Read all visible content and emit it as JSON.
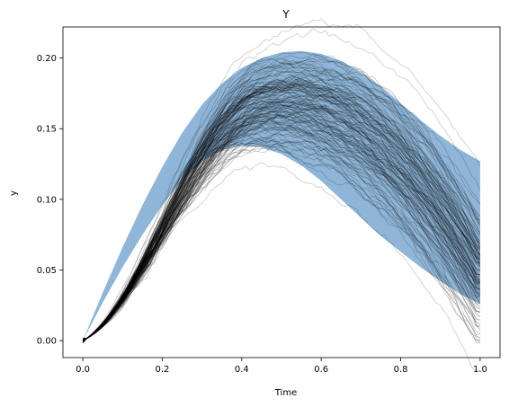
{
  "chart_data": {
    "type": "line",
    "title": "Y",
    "xlabel": "Time",
    "ylabel": "y",
    "xlim": [
      -0.05,
      1.05
    ],
    "ylim": [
      -0.012,
      0.222
    ],
    "xticks": [
      0.0,
      0.2,
      0.4,
      0.6,
      0.8,
      1.0
    ],
    "xtick_labels": [
      "0.0",
      "0.2",
      "0.4",
      "0.6",
      "0.8",
      "1.0"
    ],
    "yticks": [
      0.0,
      0.05,
      0.1,
      0.15,
      0.2
    ],
    "ytick_labels": [
      "0.00",
      "0.05",
      "0.10",
      "0.15",
      "0.20"
    ],
    "grid": false,
    "series_count": 150,
    "band": {
      "x": [
        0.0,
        0.05,
        0.1,
        0.15,
        0.2,
        0.25,
        0.3,
        0.35,
        0.4,
        0.45,
        0.5,
        0.55,
        0.6,
        0.65,
        0.7,
        0.75,
        0.8,
        0.85,
        0.9,
        0.95,
        1.0
      ],
      "upper": [
        0.0,
        0.034,
        0.066,
        0.096,
        0.123,
        0.147,
        0.167,
        0.182,
        0.193,
        0.2,
        0.204,
        0.205,
        0.203,
        0.198,
        0.19,
        0.18,
        0.168,
        0.156,
        0.145,
        0.135,
        0.127
      ],
      "lower": [
        0.0,
        0.027,
        0.052,
        0.075,
        0.096,
        0.114,
        0.127,
        0.135,
        0.138,
        0.137,
        0.132,
        0.124,
        0.113,
        0.1,
        0.087,
        0.074,
        0.063,
        0.052,
        0.042,
        0.033,
        0.026
      ],
      "color": "#8fb6d8"
    },
    "line_color": "#000000"
  }
}
